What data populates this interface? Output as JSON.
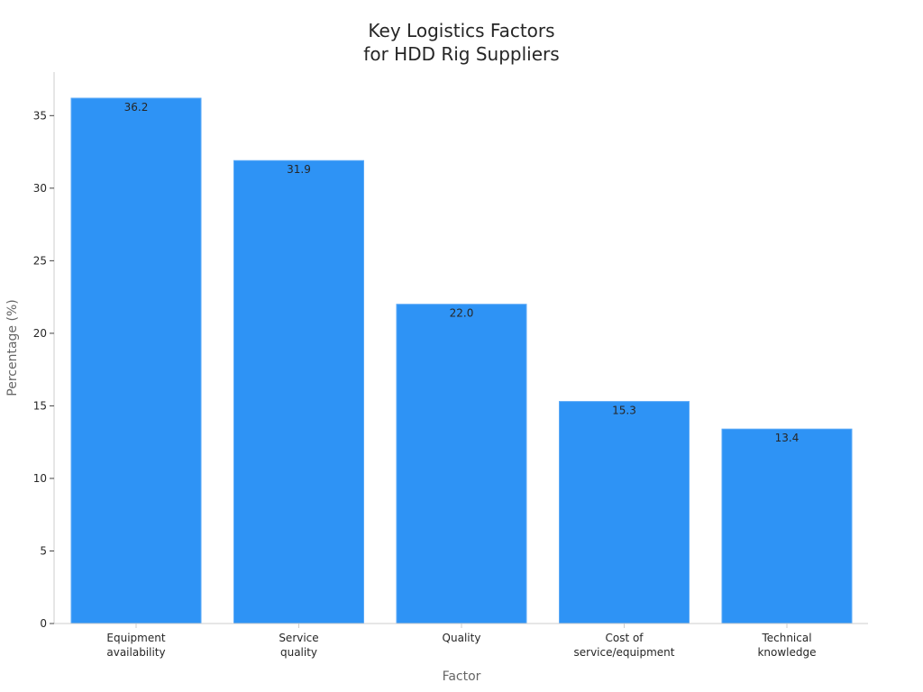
{
  "chart_data": {
    "type": "bar",
    "title_lines": [
      "Key Logistics Factors",
      "for HDD Rig Suppliers"
    ],
    "xlabel": "Factor",
    "ylabel": "Percentage (%)",
    "categories": [
      [
        "Equipment",
        "availability"
      ],
      [
        "Service",
        "quality"
      ],
      [
        "Quality"
      ],
      [
        "Cost of",
        "service/equipment"
      ],
      [
        "Technical",
        "knowledge"
      ]
    ],
    "values": [
      36.2,
      31.9,
      22.0,
      15.3,
      13.4
    ],
    "value_labels": [
      "36.2",
      "31.9",
      "22.0",
      "15.3",
      "13.4"
    ],
    "ylim": [
      0,
      38
    ],
    "yticks": [
      0,
      5,
      10,
      15,
      20,
      25,
      30,
      35
    ],
    "grid": false,
    "legend": "none",
    "bar_color": "#2e93f5",
    "axis_color": "#cccccc",
    "text_color": "#262626",
    "label_color": "#666666"
  }
}
